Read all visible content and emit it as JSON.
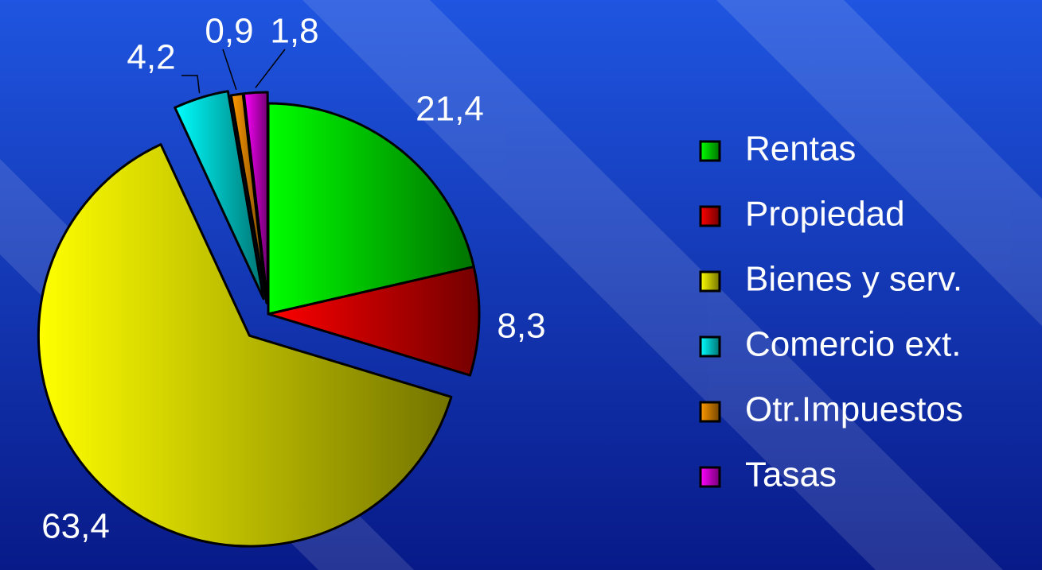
{
  "chart_data": {
    "type": "pie",
    "categories": [
      "Rentas",
      "Propiedad",
      "Bienes y serv.",
      "Comercio ext.",
      "Otr.Impuestos",
      "Tasas"
    ],
    "values": [
      21.4,
      8.3,
      63.4,
      4.2,
      0.9,
      1.8
    ],
    "value_labels": [
      "21,4",
      "8,3",
      "63,4",
      "4,2",
      "0,9",
      "1,8"
    ],
    "colors": [
      "#00ff00",
      "#ff0000",
      "#ffff00",
      "#00ffff",
      "#ff9900",
      "#ff00ff"
    ],
    "legend": "right"
  }
}
